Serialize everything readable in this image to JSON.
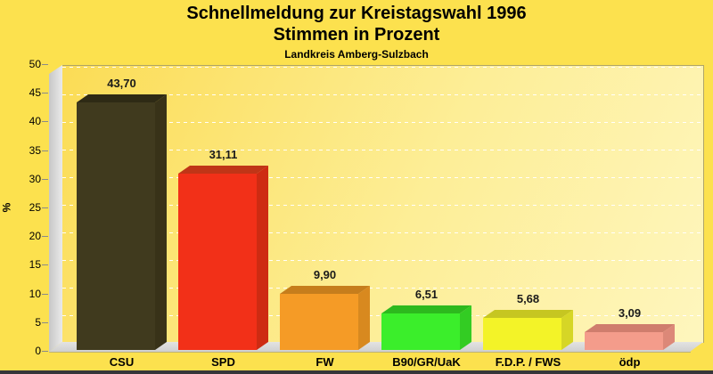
{
  "title": {
    "line1": "Schnellmeldung zur Kreistagswahl 1996",
    "line2": "Stimmen in Prozent",
    "subtitle": "Landkreis Amberg-Sulzbach"
  },
  "y_axis": {
    "label": "%",
    "ticks": [
      0,
      5,
      10,
      15,
      20,
      25,
      30,
      35,
      40,
      45,
      50
    ]
  },
  "chart_data": {
    "type": "bar",
    "title": "Schnellmeldung zur Kreistagswahl 1996",
    "subtitle2": "Stimmen in Prozent",
    "subtitle3": "Landkreis Amberg-Sulzbach",
    "categories": [
      "CSU",
      "SPD",
      "FW",
      "B90/GR/UaK",
      "F.D.P. / FWS",
      "ödp"
    ],
    "values": [
      43.7,
      31.11,
      9.9,
      6.51,
      5.68,
      3.09
    ],
    "value_labels": [
      "43,70",
      "31,11",
      "9,90",
      "6,51",
      "5,68",
      "3,09"
    ],
    "xlabel": "",
    "ylabel": "%",
    "ylim": [
      0,
      50
    ],
    "ytick_step": 5,
    "grid": "dashed-horizontal",
    "legend": "none",
    "style": "3d-bars",
    "bar_colors": [
      {
        "name": "csu",
        "front": "#403A1E",
        "top": "#2E2A15",
        "side": "#383218"
      },
      {
        "name": "spd",
        "front": "#F23018",
        "top": "#C03517",
        "side": "#CE2B12"
      },
      {
        "name": "fw",
        "front": "#F59B26",
        "top": "#C67D1C",
        "side": "#D8891F"
      },
      {
        "name": "b90-gr-uak",
        "front": "#3BEE2B",
        "top": "#2DB91E",
        "side": "#33CC23"
      },
      {
        "name": "fdp-fws",
        "front": "#F3F328",
        "top": "#C6C621",
        "side": "#D6D626"
      },
      {
        "name": "oedp",
        "front": "#F49C8B",
        "top": "#CF7D6D",
        "side": "#DC8878"
      }
    ]
  },
  "colors": {
    "background": "#FCE14E",
    "plot_gradient_start": "#FBDC55",
    "plot_gradient_end": "#FEF6BE",
    "wall": "#D6D6D6",
    "floor": "#DCDCDC",
    "frame_border": "#AFA567",
    "gridline": "#FFFFFF",
    "text": "#000000",
    "bottom_bar": "#36363A"
  }
}
